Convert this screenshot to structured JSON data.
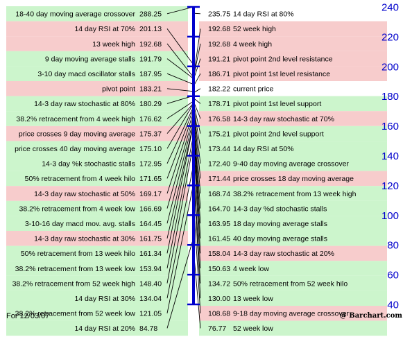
{
  "chart_data": {
    "type": "table",
    "title": "",
    "axis": {
      "ticks": [
        240,
        220,
        200,
        180,
        160,
        140,
        120,
        100,
        80,
        60,
        40
      ],
      "ylim": [
        40,
        240
      ]
    },
    "current_price": {
      "label": "current price",
      "value": "182.22"
    },
    "left": [
      {
        "label": "18-40 day moving average crossover",
        "value": "288.25",
        "color": "#ccf5cc"
      },
      {
        "label": "14 day RSI at 70%",
        "value": "201.13",
        "color": "#f7cccc"
      },
      {
        "label": "13 week high",
        "value": "192.68",
        "color": "#f7cccc"
      },
      {
        "label": "9 day moving average stalls",
        "value": "191.79",
        "color": "#ccf5cc"
      },
      {
        "label": "3-10 day macd oscillator stalls",
        "value": "187.95",
        "color": "#ccf5cc"
      },
      {
        "label": "pivot point",
        "value": "183.21",
        "color": "#f7cccc"
      },
      {
        "label": "14-3 day raw stochastic at 80%",
        "value": "180.29",
        "color": "#ccf5cc"
      },
      {
        "label": "38.2% retracement from 4 week high",
        "value": "176.62",
        "color": "#ccf5cc"
      },
      {
        "label": "price crosses 9 day moving average",
        "value": "175.37",
        "color": "#f7cccc"
      },
      {
        "label": "price crosses 40 day moving average",
        "value": "175.10",
        "color": "#ccf5cc"
      },
      {
        "label": "14-3 day %k stochastic stalls",
        "value": "172.95",
        "color": "#ccf5cc"
      },
      {
        "label": "50% retracement from 4 week hilo",
        "value": "171.65",
        "color": "#ccf5cc"
      },
      {
        "label": "14-3 day raw stochastic at 50%",
        "value": "169.17",
        "color": "#f7cccc"
      },
      {
        "label": "38.2% retracement from 4 week low",
        "value": "166.69",
        "color": "#ccf5cc"
      },
      {
        "label": "3-10-16 day macd mov. avg. stalls",
        "value": "164.45",
        "color": "#ccf5cc"
      },
      {
        "label": "14-3 day raw stochastic at 30%",
        "value": "161.75",
        "color": "#f7cccc"
      },
      {
        "label": "50% retracement from 13 week hilo",
        "value": "161.34",
        "color": "#ccf5cc"
      },
      {
        "label": "38.2% retracement from 13 week low",
        "value": "153.94",
        "color": "#ccf5cc"
      },
      {
        "label": "38.2% retracement from 52 week high",
        "value": "148.40",
        "color": "#ccf5cc"
      },
      {
        "label": "14 day RSI at 30%",
        "value": "134.04",
        "color": "#ccf5cc"
      },
      {
        "label": "38.2% retracement from 52 week low",
        "value": "121.05",
        "color": "#ccf5cc"
      },
      {
        "label": "14 day RSI at 20%",
        "value": "84.78",
        "color": "#ccf5cc"
      }
    ],
    "right": [
      {
        "label": "14 day RSI at 80%",
        "value": "235.75",
        "color": "#ffffff"
      },
      {
        "label": "52 week high",
        "value": "192.68",
        "color": "#f7cccc"
      },
      {
        "label": "4 week high",
        "value": "192.68",
        "color": "#f7cccc"
      },
      {
        "label": "pivot point 2nd level resistance",
        "value": "191.21",
        "color": "#f7cccc"
      },
      {
        "label": "pivot point 1st level resistance",
        "value": "186.71",
        "color": "#f7cccc"
      },
      {
        "label": "current price",
        "value": "182.22",
        "color": "#ffffff"
      },
      {
        "label": "pivot point 1st level support",
        "value": "178.71",
        "color": "#ccf5cc"
      },
      {
        "label": "14-3 day raw stochastic at 70%",
        "value": "176.58",
        "color": "#f7cccc"
      },
      {
        "label": "pivot point 2nd level support",
        "value": "175.21",
        "color": "#ccf5cc"
      },
      {
        "label": "14 day RSI at 50%",
        "value": "173.44",
        "color": "#ccf5cc"
      },
      {
        "label": "9-40 day moving average crossover",
        "value": "172.40",
        "color": "#ccf5cc"
      },
      {
        "label": "price crosses 18 day moving average",
        "value": "171.44",
        "color": "#f7cccc"
      },
      {
        "label": "38.2% retracement from 13 week high",
        "value": "168.74",
        "color": "#ccf5cc"
      },
      {
        "label": "14-3 day %d stochastic stalls",
        "value": "164.70",
        "color": "#ccf5cc"
      },
      {
        "label": "18 day moving average stalls",
        "value": "163.95",
        "color": "#ccf5cc"
      },
      {
        "label": "40 day moving average stalls",
        "value": "161.45",
        "color": "#ccf5cc"
      },
      {
        "label": "14-3 day raw stochastic at 20%",
        "value": "158.04",
        "color": "#f7cccc"
      },
      {
        "label": "4 week low",
        "value": "150.63",
        "color": "#ccf5cc"
      },
      {
        "label": "50% retracement from 52 week hilo",
        "value": "134.72",
        "color": "#ccf5cc"
      },
      {
        "label": "13 week low",
        "value": "130.00",
        "color": "#ccf5cc"
      },
      {
        "label": "9-18 day moving average crossover",
        "value": "108.68",
        "color": "#f7cccc"
      },
      {
        "label": "52 week low",
        "value": "76.77",
        "color": "#ccf5cc"
      }
    ]
  },
  "footer": {
    "date_text": "For 12/03/07",
    "credit": "@ Barchart.com"
  },
  "colors": {
    "axis": "#0000cc",
    "line": "#000000",
    "support": "#ccf5cc",
    "resistance": "#f7cccc"
  }
}
